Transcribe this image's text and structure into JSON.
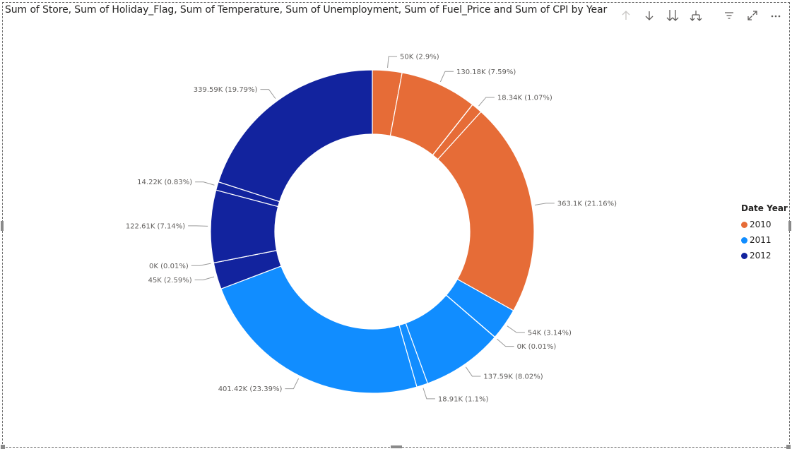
{
  "title": "Sum of Store, Sum of Holiday_Flag, Sum of Temperature, Sum of Unemployment, Sum of Fuel_Price and Sum of CPI by Year",
  "toolbar": {
    "icons": [
      "arrow-up-icon",
      "arrow-down-icon",
      "double-arrow-down-icon",
      "expand-hierarchy-icon",
      "filter-icon",
      "focus-mode-icon",
      "more-options-icon"
    ]
  },
  "legend": {
    "title": "Date Year",
    "items": [
      {
        "label": "2010",
        "color": "#E66C37"
      },
      {
        "label": "2011",
        "color": "#118DFF"
      },
      {
        "label": "2012",
        "color": "#12239E"
      }
    ]
  },
  "chart_data": {
    "type": "donut",
    "title": "Sum of Store, Sum of Holiday_Flag, Sum of Temperature, Sum of Unemployment, Sum of Fuel_Price and Sum of CPI by Year",
    "slices": [
      {
        "year": "2010",
        "label": "50K (2.9%)",
        "value": 50000,
        "percent": 2.9,
        "color": "#E66C37"
      },
      {
        "year": "2010",
        "label": "130.18K (7.59%)",
        "value": 130180,
        "percent": 7.59,
        "color": "#E66C37"
      },
      {
        "year": "2010",
        "label": "",
        "value": 200,
        "percent": 0.01,
        "color": "#E66C37"
      },
      {
        "year": "2010",
        "label": "18.34K (1.07%)",
        "value": 18340,
        "percent": 1.07,
        "color": "#E66C37"
      },
      {
        "year": "2010",
        "label": "363.1K (21.16%)",
        "value": 363100,
        "percent": 21.16,
        "color": "#E66C37"
      },
      {
        "year": "2011",
        "label": "54K (3.14%)",
        "value": 54000,
        "percent": 3.14,
        "color": "#118DFF"
      },
      {
        "year": "2011",
        "label": "0K (0.01%)",
        "value": 200,
        "percent": 0.01,
        "color": "#118DFF"
      },
      {
        "year": "2011",
        "label": "137.59K (8.02%)",
        "value": 137590,
        "percent": 8.02,
        "color": "#118DFF"
      },
      {
        "year": "2011",
        "label": "18.91K (1.1%)",
        "value": 18910,
        "percent": 1.1,
        "color": "#118DFF"
      },
      {
        "year": "2011",
        "label": "401.42K (23.39%)",
        "value": 401420,
        "percent": 23.39,
        "color": "#118DFF"
      },
      {
        "year": "2012",
        "label": "45K (2.59%)",
        "value": 45000,
        "percent": 2.59,
        "color": "#12239E"
      },
      {
        "year": "2012",
        "label": "0K (0.01%)",
        "value": 200,
        "percent": 0.01,
        "color": "#12239E"
      },
      {
        "year": "2012",
        "label": "122.61K (7.14%)",
        "value": 122610,
        "percent": 7.14,
        "color": "#12239E"
      },
      {
        "year": "2012",
        "label": "14.22K (0.83%)",
        "value": 14220,
        "percent": 0.83,
        "color": "#12239E"
      },
      {
        "year": "2012",
        "label": "339.59K (19.79%)",
        "value": 339590,
        "percent": 19.79,
        "color": "#12239E"
      }
    ]
  }
}
